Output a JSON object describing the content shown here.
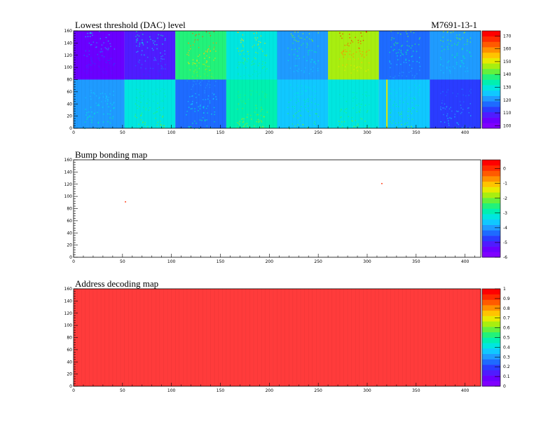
{
  "module_id": "M7691-13-1",
  "palette": [
    "#7f00ff",
    "#6a00ff",
    "#4f1cff",
    "#2a3cff",
    "#1e6bff",
    "#1f9bff",
    "#10c8ff",
    "#00e6e0",
    "#00f0b0",
    "#22f27a",
    "#63f03c",
    "#a8ee10",
    "#e8ea00",
    "#ffc400",
    "#ff9000",
    "#ff5a00",
    "#ff2a00",
    "#ff0000"
  ],
  "chart_data": [
    {
      "type": "heatmap",
      "title": "Lowest threshold (DAC) level",
      "xlim": [
        0,
        416
      ],
      "ylim": [
        0,
        160
      ],
      "x_ticks": [
        0,
        50,
        100,
        150,
        200,
        250,
        300,
        350,
        400
      ],
      "y_ticks": [
        0,
        20,
        40,
        60,
        80,
        100,
        120,
        140,
        160
      ],
      "color_range": [
        98,
        174
      ],
      "color_ticks": [
        100,
        110,
        120,
        130,
        140,
        150,
        160,
        170
      ],
      "chip_grid": {
        "columns": 8,
        "rows": 2,
        "chip_cols": 52,
        "chip_rows": 80
      },
      "chip_levels": {
        "top_row": [
          103,
          109,
          140,
          130,
          120,
          145,
          118,
          120
        ],
        "bottom_row": [
          120,
          129,
          119,
          133,
          126,
          128,
          126,
          112
        ]
      },
      "hot_column": {
        "x": 320,
        "value": 150
      }
    },
    {
      "type": "heatmap",
      "title": "Bump bonding map",
      "xlim": [
        0,
        416
      ],
      "ylim": [
        0,
        160
      ],
      "x_ticks": [
        0,
        50,
        100,
        150,
        200,
        250,
        300,
        350,
        400
      ],
      "y_ticks": [
        0,
        20,
        40,
        60,
        80,
        100,
        120,
        140,
        160
      ],
      "color_range": [
        -6,
        0.6
      ],
      "color_ticks": [
        0,
        -1,
        -2,
        -3,
        -4,
        -5,
        -6
      ],
      "points": [
        {
          "x": 53,
          "y": 91,
          "value": 0
        },
        {
          "x": 315,
          "y": 121,
          "value": 0
        }
      ]
    },
    {
      "type": "heatmap",
      "title": "Address decoding map",
      "xlim": [
        0,
        416
      ],
      "ylim": [
        0,
        160
      ],
      "x_ticks": [
        0,
        50,
        100,
        150,
        200,
        250,
        300,
        350,
        400
      ],
      "y_ticks": [
        0,
        20,
        40,
        60,
        80,
        100,
        120,
        140,
        160
      ],
      "color_range": [
        0,
        1
      ],
      "color_ticks": [
        1,
        0.9,
        0.8,
        0.7,
        0.6,
        0.5,
        0.4,
        0.3,
        0.2,
        0.1,
        0
      ],
      "uniform_value": 1,
      "uniform_color": "#ff3b3b"
    }
  ]
}
